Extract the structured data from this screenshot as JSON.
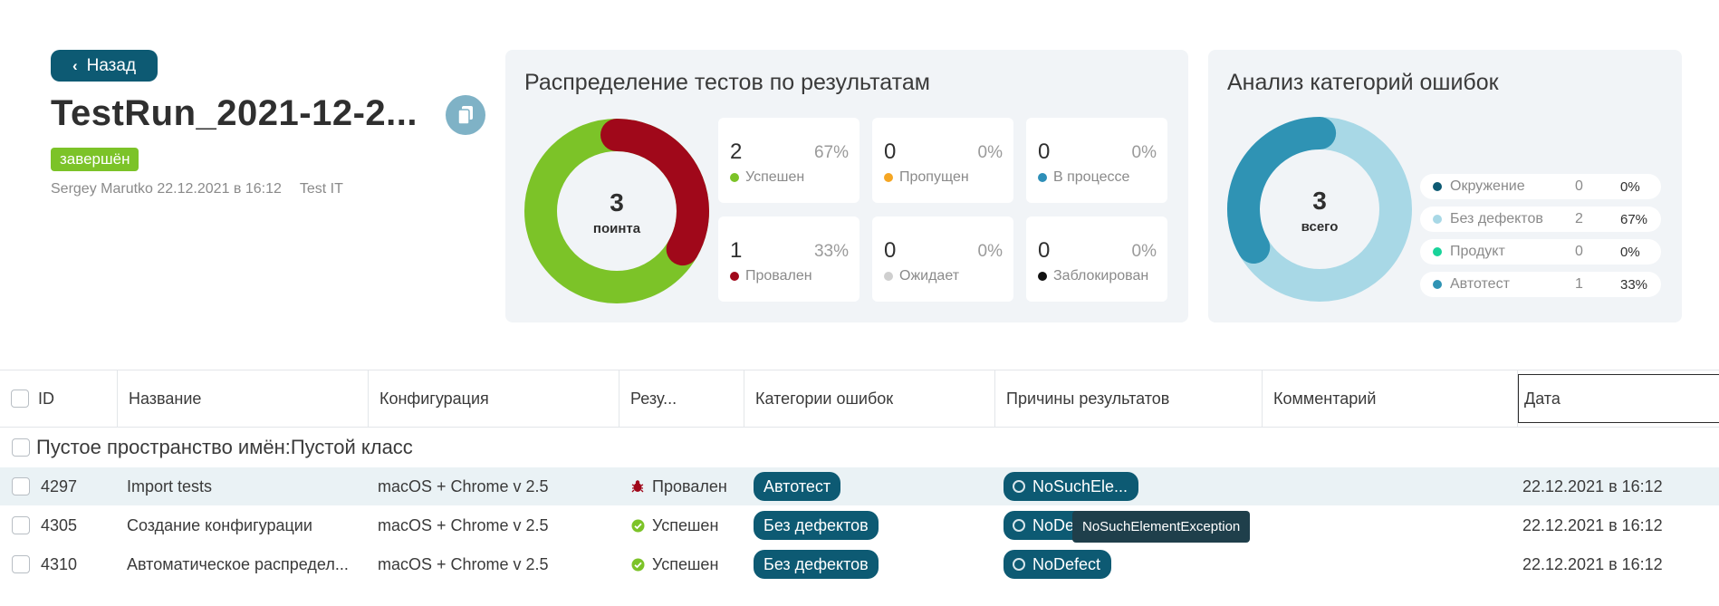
{
  "header": {
    "back_label": "Назад",
    "run_title": "TestRun_2021-12-2...",
    "status": "завершён",
    "author": "Sergey Marutko 22.12.2021 в 16:12",
    "project": "Test IT"
  },
  "results_panel": {
    "title": "Распределение тестов по результатам",
    "total": "3",
    "total_label": "поинта",
    "stats": [
      {
        "count": "2",
        "percent": "67%",
        "label": "Успешен",
        "color": "#7cc328"
      },
      {
        "count": "0",
        "percent": "0%",
        "label": "Пропущен",
        "color": "#f5a623"
      },
      {
        "count": "0",
        "percent": "0%",
        "label": "В процессе",
        "color": "#2e8fb8"
      },
      {
        "count": "1",
        "percent": "33%",
        "label": "Провален",
        "color": "#a0081a"
      },
      {
        "count": "0",
        "percent": "0%",
        "label": "Ожидает",
        "color": "#cfcfcf"
      },
      {
        "count": "0",
        "percent": "0%",
        "label": "Заблокирован",
        "color": "#111111"
      }
    ]
  },
  "categories_panel": {
    "title": "Анализ категорий ошибок",
    "total": "3",
    "total_label": "всего",
    "legend": [
      {
        "label": "Окружение",
        "count": "0",
        "percent": "0%",
        "color": "#0d5a73"
      },
      {
        "label": "Без дефектов",
        "count": "2",
        "percent": "67%",
        "color": "#a8d8e6"
      },
      {
        "label": "Продукт",
        "count": "0",
        "percent": "0%",
        "color": "#19d39a"
      },
      {
        "label": "Автотест",
        "count": "1",
        "percent": "33%",
        "color": "#2f93b4"
      }
    ]
  },
  "table": {
    "columns": {
      "id": "ID",
      "name": "Название",
      "config": "Конфигурация",
      "result": "Резу...",
      "categories": "Категории ошибок",
      "reasons": "Причины результатов",
      "comment": "Комментарий",
      "date": "Дата"
    },
    "group_name": "Пустое пространство имён:Пустой класс",
    "rows": [
      {
        "id": "4297",
        "name": "Import tests",
        "config": "macOS + Chrome v 2.5",
        "result": "Провален",
        "category": "Автотест",
        "reason": "NoSuchEle...",
        "date": "22.12.2021 в 16:12"
      },
      {
        "id": "4305",
        "name": "Создание конфигурации",
        "config": "macOS + Chrome v 2.5",
        "result": "Успешен",
        "category": "Без дефектов",
        "reason": "NoDe",
        "date": "22.12.2021 в 16:12"
      },
      {
        "id": "4310",
        "name": "Автоматическое распредел...",
        "config": "macOS + Chrome v 2.5",
        "result": "Успешен",
        "category": "Без дефектов",
        "reason": "NoDefect",
        "date": "22.12.2021 в 16:12"
      }
    ],
    "tooltip": "NoSuchElementException"
  },
  "colors": {
    "accent": "#0d5a73",
    "success": "#7cc328",
    "failed": "#a0081a",
    "panel_bg": "#f1f4f7"
  }
}
